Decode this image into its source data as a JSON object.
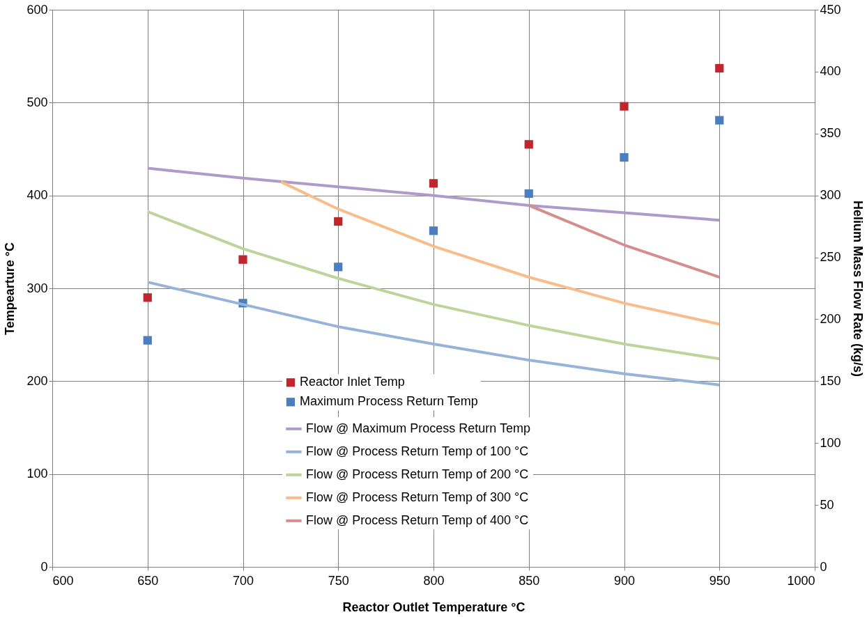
{
  "chart_data": {
    "type": "scatter",
    "xlabel": "Reactor Outlet Temperature °C",
    "ylabel": "Tempearture °C",
    "y2label": "Helium Mass Flow Rate (kg/s)",
    "xlim": [
      600,
      1000
    ],
    "xticks": [
      600,
      650,
      700,
      750,
      800,
      850,
      900,
      950,
      1000
    ],
    "ylim": [
      0,
      600
    ],
    "yticks": [
      0,
      100,
      200,
      300,
      400,
      500,
      600
    ],
    "y2lim": [
      0,
      450
    ],
    "y2ticks": [
      0,
      50,
      100,
      150,
      200,
      250,
      300,
      350,
      400,
      450
    ],
    "grid": true,
    "legend": "bottom",
    "series": [
      {
        "name": "Reactor Inlet Temp",
        "marker": "square",
        "color": "#c0262d",
        "x": [
          650,
          700,
          750,
          800,
          850,
          900,
          950
        ],
        "values": [
          290,
          331,
          372,
          413,
          455,
          496,
          537
        ]
      },
      {
        "name": "Maximum Process Return Temp",
        "marker": "square",
        "color": "#4a7ebf",
        "x": [
          650,
          700,
          750,
          800,
          850,
          900,
          950
        ],
        "values": [
          244,
          284,
          323,
          362,
          402,
          441,
          481
        ]
      },
      {
        "name": "Flow @ Maximum Process Return Temp",
        "type": "line",
        "axis": "y2",
        "color": "#ad9ccb",
        "x": [
          650,
          700,
          750,
          800,
          850,
          900,
          950
        ],
        "values": [
          322,
          314,
          307,
          300,
          292,
          286,
          280
        ]
      },
      {
        "name": "Flow @ Process Return Temp of 100 °C",
        "type": "line",
        "axis": "y2",
        "color": "#97b3da",
        "x": [
          650,
          700,
          750,
          800,
          850,
          900,
          950
        ],
        "values": [
          230,
          212,
          194,
          180,
          167,
          156,
          147
        ]
      },
      {
        "name": "Flow @ Process Return Temp of 200 °C",
        "type": "line",
        "axis": "y2",
        "color": "#bfd49a",
        "x": [
          650,
          700,
          750,
          800,
          850,
          900,
          950
        ],
        "values": [
          287,
          257,
          233,
          212,
          195,
          180,
          168
        ]
      },
      {
        "name": "Flow @ Process Return Temp of 300 °C",
        "type": "line",
        "axis": "y2",
        "color": "#f9bd8c",
        "x": [
          720,
          750,
          800,
          850,
          900,
          950
        ],
        "values": [
          311,
          289,
          259,
          234,
          213,
          196
        ]
      },
      {
        "name": "Flow @ Process Return Temp of 400 °C",
        "type": "line",
        "axis": "y2",
        "color": "#d48e8d",
        "x": [
          850,
          900,
          950
        ],
        "values": [
          292,
          260,
          234
        ]
      }
    ]
  }
}
